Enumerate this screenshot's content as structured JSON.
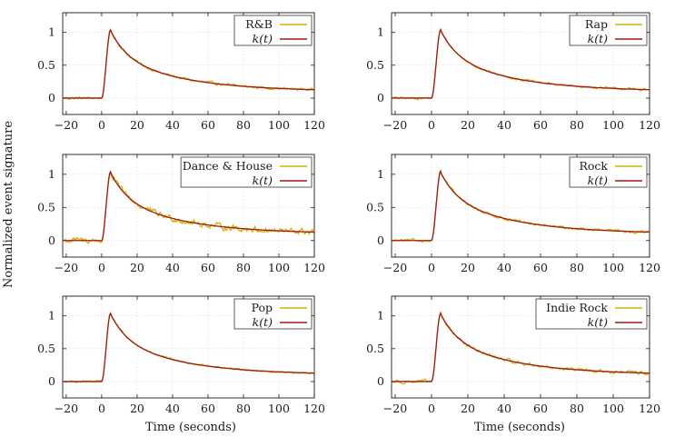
{
  "figure": {
    "ylabel": "Normalized event signature",
    "xlabel": "Time (seconds)"
  },
  "colors": {
    "genre_series": "#d4b106",
    "kernel_series": "#a01818",
    "grid": "#d9d9d9",
    "axis": "#1a1a1a"
  },
  "chart_data": [
    {
      "type": "line",
      "legend_placement": "top-right",
      "grid": true,
      "xlim": [
        -22,
        120
      ],
      "ylim": [
        -0.25,
        1.3
      ],
      "xticks": [
        -20,
        0,
        20,
        40,
        60,
        80,
        100,
        120
      ],
      "xtick_labels": [
        "−20",
        "0",
        "20",
        "40",
        "60",
        "80",
        "100",
        "120"
      ],
      "yticks": [
        0,
        0.5,
        1
      ],
      "ytick_labels": [
        "0",
        "0.5",
        "1"
      ],
      "series": [
        {
          "name": "R&B",
          "style": "noisy",
          "noise": 0.018
        },
        {
          "name": "k(t)",
          "style": "kernel"
        }
      ]
    },
    {
      "type": "line",
      "legend_placement": "top-right",
      "grid": true,
      "xlim": [
        -22,
        120
      ],
      "ylim": [
        -0.25,
        1.3
      ],
      "xticks": [
        -20,
        0,
        20,
        40,
        60,
        80,
        100,
        120
      ],
      "xtick_labels": [
        "−20",
        "0",
        "20",
        "40",
        "60",
        "80",
        "100",
        "120"
      ],
      "yticks": [
        0,
        0.5,
        1
      ],
      "ytick_labels": [
        "0",
        "0.5",
        "1"
      ],
      "series": [
        {
          "name": "Rap",
          "style": "noisy",
          "noise": 0.015
        },
        {
          "name": "k(t)",
          "style": "kernel"
        }
      ]
    },
    {
      "type": "line",
      "legend_placement": "top-right",
      "grid": true,
      "xlim": [
        -22,
        120
      ],
      "ylim": [
        -0.25,
        1.3
      ],
      "xticks": [
        -20,
        0,
        20,
        40,
        60,
        80,
        100,
        120
      ],
      "xtick_labels": [
        "−20",
        "0",
        "20",
        "40",
        "60",
        "80",
        "100",
        "120"
      ],
      "yticks": [
        0,
        0.5,
        1
      ],
      "ytick_labels": [
        "0",
        "0.5",
        "1"
      ],
      "series": [
        {
          "name": "Dance & House",
          "style": "noisy",
          "noise": 0.04
        },
        {
          "name": "k(t)",
          "style": "kernel"
        }
      ]
    },
    {
      "type": "line",
      "legend_placement": "top-right",
      "grid": true,
      "xlim": [
        -22,
        120
      ],
      "ylim": [
        -0.25,
        1.3
      ],
      "xticks": [
        -20,
        0,
        20,
        40,
        60,
        80,
        100,
        120
      ],
      "xtick_labels": [
        "−20",
        "0",
        "20",
        "40",
        "60",
        "80",
        "100",
        "120"
      ],
      "yticks": [
        0,
        0.5,
        1
      ],
      "ytick_labels": [
        "0",
        "0.5",
        "1"
      ],
      "series": [
        {
          "name": "Rock",
          "style": "noisy",
          "noise": 0.018
        },
        {
          "name": "k(t)",
          "style": "kernel"
        }
      ]
    },
    {
      "type": "line",
      "legend_placement": "top-right",
      "grid": true,
      "xlim": [
        -22,
        120
      ],
      "ylim": [
        -0.25,
        1.3
      ],
      "xticks": [
        -20,
        0,
        20,
        40,
        60,
        80,
        100,
        120
      ],
      "xtick_labels": [
        "−20",
        "0",
        "20",
        "40",
        "60",
        "80",
        "100",
        "120"
      ],
      "yticks": [
        0,
        0.5,
        1
      ],
      "ytick_labels": [
        "0",
        "0.5",
        "1"
      ],
      "series": [
        {
          "name": "Pop",
          "style": "noisy",
          "noise": 0.012
        },
        {
          "name": "k(t)",
          "style": "kernel"
        }
      ]
    },
    {
      "type": "line",
      "legend_placement": "top-right",
      "grid": true,
      "xlim": [
        -22,
        120
      ],
      "ylim": [
        -0.25,
        1.3
      ],
      "xticks": [
        -20,
        0,
        20,
        40,
        60,
        80,
        100,
        120
      ],
      "xtick_labels": [
        "−20",
        "0",
        "20",
        "40",
        "60",
        "80",
        "100",
        "120"
      ],
      "yticks": [
        0,
        0.5,
        1
      ],
      "ytick_labels": [
        "0",
        "0.5",
        "1"
      ],
      "series": [
        {
          "name": "Indie Rock",
          "style": "noisy",
          "noise": 0.022
        },
        {
          "name": "k(t)",
          "style": "kernel"
        }
      ]
    }
  ]
}
